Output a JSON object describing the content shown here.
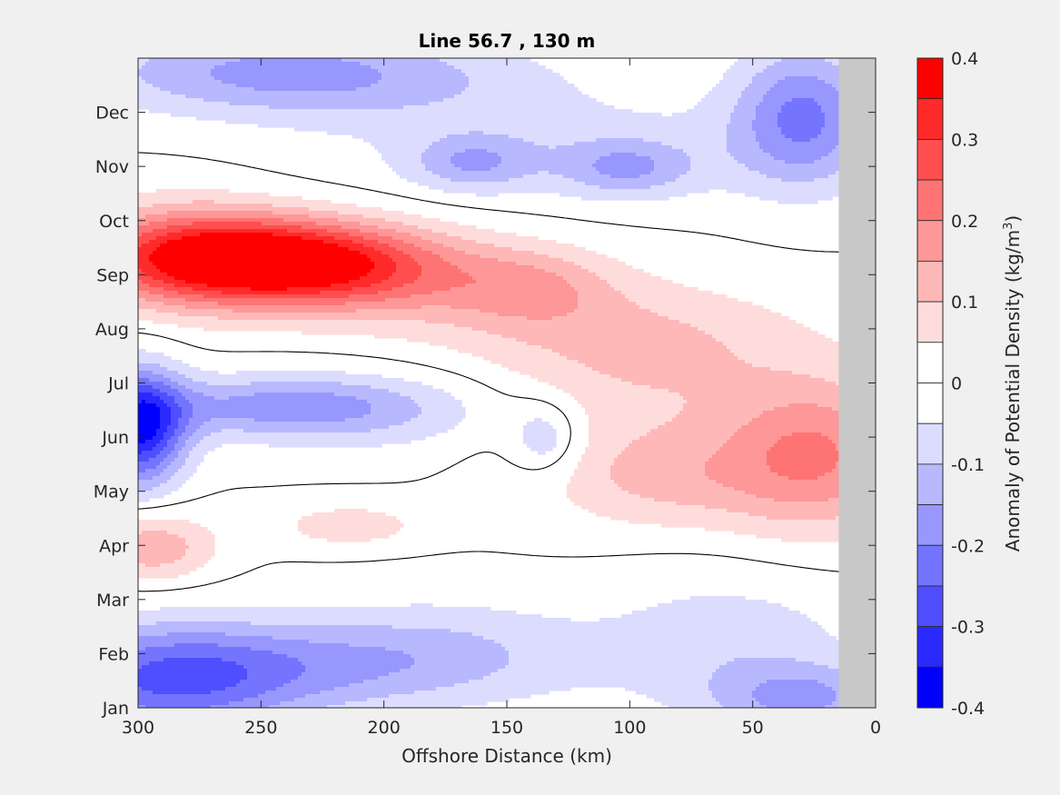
{
  "chart_data": {
    "type": "heatmap",
    "title": "Line 56.7 , 130 m",
    "xlabel": "Offshore Distance (km)",
    "ylabel": "",
    "xlim": [
      300,
      0
    ],
    "ylim": [
      1,
      13
    ],
    "x_reversed": true,
    "x_ticks": [
      300,
      250,
      200,
      150,
      100,
      50,
      0
    ],
    "y_ticks": [
      {
        "value": 1,
        "label": "Jan"
      },
      {
        "value": 2,
        "label": "Feb"
      },
      {
        "value": 3,
        "label": "Mar"
      },
      {
        "value": 4,
        "label": "Apr"
      },
      {
        "value": 5,
        "label": "May"
      },
      {
        "value": 6,
        "label": "Jun"
      },
      {
        "value": 7,
        "label": "Jul"
      },
      {
        "value": 8,
        "label": "Aug"
      },
      {
        "value": 9,
        "label": "Sep"
      },
      {
        "value": 10,
        "label": "Oct"
      },
      {
        "value": 11,
        "label": "Nov"
      },
      {
        "value": 12,
        "label": "Dec"
      }
    ],
    "no_data_region": {
      "x_from": 15,
      "x_to": 0,
      "color": "#c8c8c8"
    },
    "zero_contour": true,
    "colorbar": {
      "label_main": "Anomaly of Potential Density (kg/m",
      "label_sup": "3",
      "label_end": ")",
      "range": [
        -0.4,
        0.4
      ],
      "ticks": [
        {
          "value": 0.4,
          "label": "0.4"
        },
        {
          "value": 0.3,
          "label": "0.3"
        },
        {
          "value": 0.2,
          "label": "0.2"
        },
        {
          "value": 0.1,
          "label": "0.1"
        },
        {
          "value": 0.0,
          "label": "0"
        },
        {
          "value": -0.1,
          "label": "-0.1"
        },
        {
          "value": -0.2,
          "label": "-0.2"
        },
        {
          "value": -0.3,
          "label": "-0.3"
        },
        {
          "value": -0.4,
          "label": "-0.4"
        }
      ],
      "levels": [
        {
          "from": 0.35,
          "to": 0.4,
          "color": "#ff0000"
        },
        {
          "from": 0.3,
          "to": 0.35,
          "color": "#ff2a2a"
        },
        {
          "from": 0.25,
          "to": 0.3,
          "color": "#ff4f4f"
        },
        {
          "from": 0.2,
          "to": 0.25,
          "color": "#fe7474"
        },
        {
          "from": 0.15,
          "to": 0.2,
          "color": "#fe9797"
        },
        {
          "from": 0.1,
          "to": 0.15,
          "color": "#ffb8b8"
        },
        {
          "from": 0.05,
          "to": 0.1,
          "color": "#ffdcdc"
        },
        {
          "from": 0.0,
          "to": 0.05,
          "color": "#ffffff"
        },
        {
          "from": -0.05,
          "to": 0.0,
          "color": "#ffffff"
        },
        {
          "from": -0.1,
          "to": -0.05,
          "color": "#dcdcff"
        },
        {
          "from": -0.15,
          "to": -0.1,
          "color": "#b8b8ff"
        },
        {
          "from": -0.2,
          "to": -0.15,
          "color": "#9797fe"
        },
        {
          "from": -0.25,
          "to": -0.2,
          "color": "#7474fe"
        },
        {
          "from": -0.3,
          "to": -0.25,
          "color": "#4f4fff"
        },
        {
          "from": -0.35,
          "to": -0.3,
          "color": "#2a2aff"
        },
        {
          "from": -0.4,
          "to": -0.35,
          "color": "#0000ff"
        }
      ]
    },
    "anomaly_features": [
      {
        "x": 258,
        "y": 9.35,
        "sx": 42,
        "sy": 0.55,
        "a": 0.3
      },
      {
        "x": 225,
        "y": 9.15,
        "sx": 40,
        "sy": 0.55,
        "a": 0.18
      },
      {
        "x": 285,
        "y": 9.4,
        "sx": 30,
        "sy": 0.75,
        "a": 0.12
      },
      {
        "x": 185,
        "y": 8.9,
        "sx": 45,
        "sy": 0.65,
        "a": 0.06
      },
      {
        "x": 140,
        "y": 8.8,
        "sx": 22,
        "sy": 0.5,
        "a": 0.09
      },
      {
        "x": 130,
        "y": 8.1,
        "sx": 55,
        "sy": 0.8,
        "a": 0.05
      },
      {
        "x": 80,
        "y": 7.8,
        "sx": 45,
        "sy": 0.7,
        "a": 0.05
      },
      {
        "x": 25,
        "y": 5.7,
        "sx": 28,
        "sy": 1.0,
        "a": 0.2
      },
      {
        "x": 85,
        "y": 5.2,
        "sx": 30,
        "sy": 0.6,
        "a": 0.07
      },
      {
        "x": 100,
        "y": 6.3,
        "sx": 40,
        "sy": 1.2,
        "a": 0.07
      },
      {
        "x": 295,
        "y": 4.0,
        "sx": 18,
        "sy": 0.45,
        "a": 0.14
      },
      {
        "x": 215,
        "y": 4.4,
        "sx": 22,
        "sy": 0.3,
        "a": 0.08
      },
      {
        "x": 300,
        "y": 6.2,
        "sx": 13,
        "sy": 0.75,
        "a": -0.35
      },
      {
        "x": 245,
        "y": 6.6,
        "sx": 42,
        "sy": 0.4,
        "a": -0.15
      },
      {
        "x": 200,
        "y": 6.5,
        "sx": 45,
        "sy": 0.6,
        "a": -0.06
      },
      {
        "x": 135,
        "y": 6.0,
        "sx": 10,
        "sy": 0.45,
        "a": -0.11
      },
      {
        "x": 290,
        "y": 1.5,
        "sx": 38,
        "sy": 0.75,
        "a": -0.21
      },
      {
        "x": 230,
        "y": 1.8,
        "sx": 60,
        "sy": 0.6,
        "a": -0.12
      },
      {
        "x": 175,
        "y": 2.2,
        "sx": 40,
        "sy": 0.7,
        "a": -0.06
      },
      {
        "x": 250,
        "y": 12.8,
        "sx": 55,
        "sy": 0.55,
        "a": -0.13
      },
      {
        "x": 200,
        "y": 12.6,
        "sx": 60,
        "sy": 0.6,
        "a": -0.06
      },
      {
        "x": 30,
        "y": 12.0,
        "sx": 20,
        "sy": 0.9,
        "a": -0.2
      },
      {
        "x": 165,
        "y": 11.1,
        "sx": 17,
        "sy": 0.35,
        "a": -0.11
      },
      {
        "x": 102,
        "y": 11.0,
        "sx": 18,
        "sy": 0.35,
        "a": -0.11
      },
      {
        "x": 120,
        "y": 11.3,
        "sx": 70,
        "sy": 0.7,
        "a": -0.07
      },
      {
        "x": 60,
        "y": 2.2,
        "sx": 40,
        "sy": 1.0,
        "a": -0.08
      },
      {
        "x": 30,
        "y": 1.2,
        "sx": 25,
        "sy": 0.45,
        "a": -0.14
      }
    ]
  }
}
